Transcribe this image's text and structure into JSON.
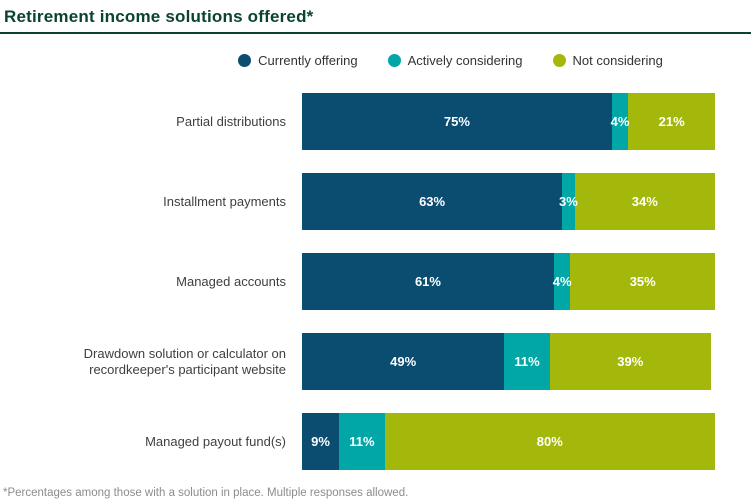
{
  "header": {
    "title": "Retirement income solutions offered*",
    "title_color": "#0a4333"
  },
  "footnote": "*Percentages among those with a solution in place. Multiple responses allowed.",
  "chart_data": {
    "type": "bar",
    "orientation": "horizontal-stacked",
    "title": "Retirement income solutions offered*",
    "value_format": "percent",
    "legend_position": "top-center",
    "grid": false,
    "xlim": [
      0,
      100
    ],
    "categories": [
      "Partial distributions",
      "Installment payments",
      "Managed accounts",
      "Drawdown solution or calculator on recordkeeper's participant website",
      "Managed payout fund(s)"
    ],
    "series": [
      {
        "name": "Currently offering",
        "color": "#0b4d71",
        "values": [
          75,
          63,
          61,
          49,
          9
        ]
      },
      {
        "name": "Actively considering",
        "color": "#00a7a6",
        "values": [
          4,
          3,
          4,
          11,
          11
        ]
      },
      {
        "name": "Not considering",
        "color": "#a4b70b",
        "values": [
          21,
          34,
          35,
          39,
          80
        ]
      }
    ],
    "value_labels": [
      [
        "75%",
        "4%",
        "21%"
      ],
      [
        "63%",
        "3%",
        "34%"
      ],
      [
        "61%",
        "4%",
        "35%"
      ],
      [
        "49%",
        "11%",
        "39%"
      ],
      [
        "9%",
        "11%",
        "80%"
      ]
    ],
    "footnote": "*Percentages among those with a solution in place. Multiple responses allowed."
  }
}
